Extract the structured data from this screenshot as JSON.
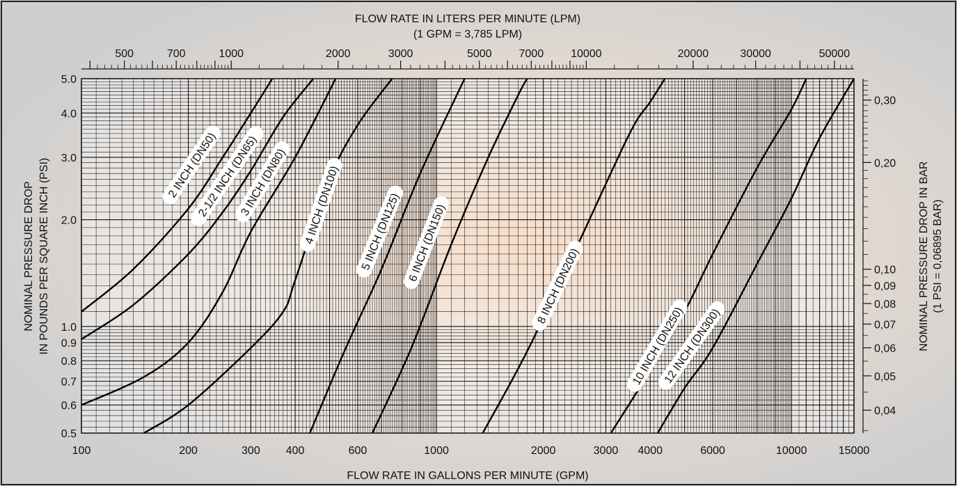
{
  "chart_data": {
    "type": "line",
    "x_scale": "log",
    "y_scale": "log",
    "top_title_line1": "FLOW RATE IN LITERS PER MINUTE (LPM)",
    "top_title_line2": "(1 GPM = 3,785 LPM)",
    "xlabel": "FLOW RATE IN GALLONS PER MINUTE (GPM)",
    "ylabel_line1": "NOMINAL PRESSURE DROP",
    "ylabel_line2": "IN POUNDS PER SQUARE INCH (PSI)",
    "right_label_line1": "NOMINAL PRESSURE DROP IN BAR",
    "right_label_line2": "(1 PSI = 0,06895 BAR)",
    "xlim": [
      100,
      15000
    ],
    "ylim": [
      0.5,
      5.0
    ],
    "x_ticks": [
      {
        "value": 100,
        "label": "100"
      },
      {
        "value": 200,
        "label": "200"
      },
      {
        "value": 300,
        "label": "300"
      },
      {
        "value": 400,
        "label": "400"
      },
      {
        "value": 600,
        "label": "600"
      },
      {
        "value": 1000,
        "label": "1000"
      },
      {
        "value": 2000,
        "label": "2000"
      },
      {
        "value": 3000,
        "label": "3000"
      },
      {
        "value": 4000,
        "label": "4000"
      },
      {
        "value": 6000,
        "label": "6000"
      },
      {
        "value": 10000,
        "label": "10000"
      },
      {
        "value": 15000,
        "label": "15000"
      }
    ],
    "top_ticks": [
      {
        "value": 500,
        "label": "500"
      },
      {
        "value": 700,
        "label": "700"
      },
      {
        "value": 1000,
        "label": "1000"
      },
      {
        "value": 2000,
        "label": "2000"
      },
      {
        "value": 3000,
        "label": "3000"
      },
      {
        "value": 5000,
        "label": "5000"
      },
      {
        "value": 7000,
        "label": "7000"
      },
      {
        "value": 10000,
        "label": "10000"
      },
      {
        "value": 20000,
        "label": "20000"
      },
      {
        "value": 30000,
        "label": "30000"
      },
      {
        "value": 50000,
        "label": "50000"
      }
    ],
    "y_ticks": [
      {
        "value": 0.5,
        "label": "0.5"
      },
      {
        "value": 0.6,
        "label": "0.6"
      },
      {
        "value": 0.7,
        "label": "0.7"
      },
      {
        "value": 0.8,
        "label": "0.8"
      },
      {
        "value": 0.9,
        "label": "0.9"
      },
      {
        "value": 1.0,
        "label": "1.0"
      },
      {
        "value": 2.0,
        "label": "2.0"
      },
      {
        "value": 3.0,
        "label": "3.0"
      },
      {
        "value": 4.0,
        "label": "4.0"
      },
      {
        "value": 5.0,
        "label": "5.0"
      }
    ],
    "right_ticks": [
      {
        "value": 0.04,
        "label": "0,04"
      },
      {
        "value": 0.05,
        "label": "0,05"
      },
      {
        "value": 0.06,
        "label": "0,06"
      },
      {
        "value": 0.07,
        "label": "0,07"
      },
      {
        "value": 0.08,
        "label": "0,08"
      },
      {
        "value": 0.09,
        "label": "0,09"
      },
      {
        "value": 0.1,
        "label": "0,10"
      },
      {
        "value": 0.2,
        "label": "0,20"
      },
      {
        "value": 0.3,
        "label": "0,30"
      }
    ],
    "series": [
      {
        "name": "2 INCH (DN50)",
        "label_point": [
          205,
          2.85
        ],
        "points": [
          [
            100,
            1.1
          ],
          [
            140,
            1.45
          ],
          [
            200,
            2.15
          ],
          [
            250,
            3.0
          ],
          [
            300,
            4.0
          ],
          [
            345,
            5.0
          ]
        ]
      },
      {
        "name": "2-1/2 INCH (DN65)",
        "label_point": [
          258,
          2.65
        ],
        "points": [
          [
            100,
            0.92
          ],
          [
            140,
            1.15
          ],
          [
            200,
            1.6
          ],
          [
            250,
            2.1
          ],
          [
            300,
            2.75
          ],
          [
            370,
            3.9
          ],
          [
            450,
            5.0
          ]
        ]
      },
      {
        "name": "3 INCH (DN80)",
        "label_point": [
          325,
          2.55
        ],
        "points": [
          [
            100,
            0.6
          ],
          [
            150,
            0.72
          ],
          [
            200,
            0.9
          ],
          [
            250,
            1.25
          ],
          [
            300,
            1.85
          ],
          [
            400,
            3.0
          ],
          [
            520,
            5.0
          ]
        ]
      },
      {
        "name": "4 INCH (DN100)",
        "label_point": [
          475,
          2.2
        ],
        "points": [
          [
            150,
            0.5
          ],
          [
            200,
            0.6
          ],
          [
            300,
            0.87
          ],
          [
            370,
            1.1
          ],
          [
            400,
            1.35
          ],
          [
            500,
            2.6
          ],
          [
            600,
            3.7
          ],
          [
            750,
            5.0
          ]
        ]
      },
      {
        "name": "5 INCH (DN125)",
        "label_point": [
          695,
          1.85
        ],
        "points": [
          [
            440,
            0.5
          ],
          [
            550,
            0.85
          ],
          [
            700,
            1.45
          ],
          [
            900,
            2.7
          ],
          [
            1200,
            5.0
          ]
        ]
      },
      {
        "name": "6 INCH (DN150)",
        "label_point": [
          940,
          1.72
        ],
        "points": [
          [
            660,
            0.5
          ],
          [
            850,
            0.87
          ],
          [
            1100,
            1.7
          ],
          [
            1400,
            3.0
          ],
          [
            1700,
            4.5
          ],
          [
            1800,
            5.0
          ]
        ]
      },
      {
        "name": "8 INCH (DN200)",
        "label_point": [
          2200,
          1.3
        ],
        "points": [
          [
            1350,
            0.5
          ],
          [
            1800,
            0.85
          ],
          [
            2500,
            1.7
          ],
          [
            3500,
            3.5
          ],
          [
            4000,
            4.3
          ],
          [
            4400,
            5.0
          ]
        ]
      },
      {
        "name": "10 INCH (DN250)",
        "label_point": [
          4200,
          0.88
        ],
        "points": [
          [
            3100,
            0.5
          ],
          [
            4000,
            0.75
          ],
          [
            5000,
            1.1
          ],
          [
            6000,
            1.6
          ],
          [
            8000,
            2.8
          ],
          [
            10000,
            4.1
          ],
          [
            11000,
            5.0
          ]
        ]
      },
      {
        "name": "12 INCH (DN300)",
        "label_point": [
          5250,
          0.88
        ],
        "points": [
          [
            4200,
            0.5
          ],
          [
            5000,
            0.67
          ],
          [
            6000,
            0.87
          ],
          [
            8000,
            1.5
          ],
          [
            10000,
            2.3
          ],
          [
            12000,
            3.4
          ],
          [
            15000,
            5.0
          ]
        ]
      }
    ]
  }
}
